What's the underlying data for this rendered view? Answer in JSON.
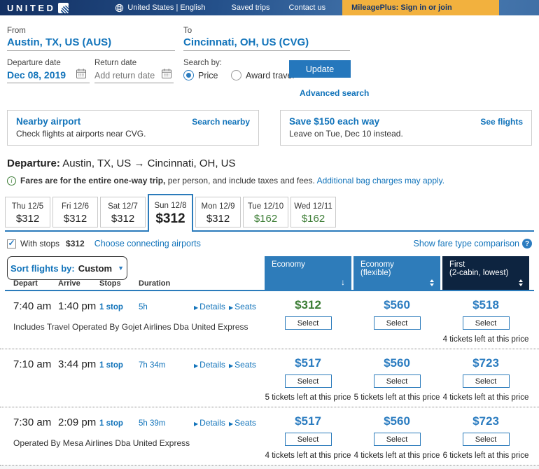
{
  "navbar": {
    "logo_text": "UNITED",
    "region": "United States | English",
    "saved_trips": "Saved trips",
    "contact_us": "Contact us",
    "mileageplus": "MileagePlus: Sign in or join"
  },
  "search_form": {
    "from_label": "From",
    "from_value": "Austin, TX, US (AUS)",
    "to_label": "To",
    "to_value": "Cincinnati, OH, US (CVG)",
    "departure_date_label": "Departure date",
    "departure_date_value": "Dec 08, 2019",
    "return_date_label": "Return date",
    "return_date_placeholder": "Add return date",
    "search_by_label": "Search by:",
    "radio_price": "Price",
    "radio_award": "Award travel",
    "update_button": "Update",
    "advanced_search": "Advanced search"
  },
  "promos": [
    {
      "title": "Nearby airport",
      "body": "Check flights at airports near CVG.",
      "link": "Search nearby"
    },
    {
      "title": "Save $150 each way",
      "body": "Leave on Tue, Dec 10 instead.",
      "link": "See flights"
    }
  ],
  "departure": {
    "label": "Departure:",
    "route": "Austin, TX, US → Cincinnati, OH, US",
    "note_bold": "Fares are for the entire one-way trip,",
    "note_rest": " per person, and include taxes and fees.",
    "note_link": "Additional bag charges may apply."
  },
  "date_tabs": [
    {
      "day": "Thu 12/5",
      "price": "$312",
      "selected": false,
      "green": false
    },
    {
      "day": "Fri 12/6",
      "price": "$312",
      "selected": false,
      "green": false
    },
    {
      "day": "Sat 12/7",
      "price": "$312",
      "selected": false,
      "green": false
    },
    {
      "day": "Sun 12/8",
      "price": "$312",
      "selected": true,
      "green": false
    },
    {
      "day": "Mon 12/9",
      "price": "$312",
      "selected": false,
      "green": false
    },
    {
      "day": "Tue 12/10",
      "price": "$162",
      "selected": false,
      "green": true
    },
    {
      "day": "Wed 12/11",
      "price": "$162",
      "selected": false,
      "green": true
    }
  ],
  "filters": {
    "with_stops_label": "With stops",
    "with_stops_price": "$312",
    "connecting_link": "Choose connecting airports",
    "fare_comparison_link": "Show fare type comparison"
  },
  "results": {
    "sort_label": "Sort flights by:",
    "sort_value": "Custom",
    "columns": [
      "Depart",
      "Arrive",
      "Stops",
      "Duration"
    ],
    "fare_columns": [
      {
        "title": "Economy",
        "subtitle": "",
        "sort": "down",
        "dark": false
      },
      {
        "title": "Economy",
        "subtitle": "(flexible)",
        "sort": "both",
        "dark": false
      },
      {
        "title": "First",
        "subtitle": "(2-cabin, lowest)",
        "sort": "both",
        "dark": true
      }
    ],
    "flights": [
      {
        "depart": "7:40 am",
        "arrive": "1:40 pm",
        "stops": "1 stop",
        "duration": "5h",
        "details_label": "Details",
        "seats_label": "Seats",
        "note": "Includes Travel Operated By Gojet Airlines Dba United Express",
        "fares": [
          {
            "price": "$312",
            "green": true,
            "select_label": "Select",
            "tickets": ""
          },
          {
            "price": "$560",
            "green": false,
            "select_label": "Select",
            "tickets": ""
          },
          {
            "price": "$518",
            "green": false,
            "select_label": "Select",
            "tickets": "4 tickets left at this price"
          }
        ]
      },
      {
        "depart": "7:10 am",
        "arrive": "3:44 pm",
        "stops": "1 stop",
        "duration": "7h 34m",
        "details_label": "Details",
        "seats_label": "Seats",
        "note": "",
        "fares": [
          {
            "price": "$517",
            "green": false,
            "select_label": "Select",
            "tickets": "5 tickets left at this price"
          },
          {
            "price": "$560",
            "green": false,
            "select_label": "Select",
            "tickets": "5 tickets left at this price"
          },
          {
            "price": "$723",
            "green": false,
            "select_label": "Select",
            "tickets": "4 tickets left at this price"
          }
        ]
      },
      {
        "depart": "7:30 am",
        "arrive": "2:09 pm",
        "stops": "1 stop",
        "duration": "5h 39m",
        "details_label": "Details",
        "seats_label": "Seats",
        "note": "Operated By Mesa Airlines Dba United Express",
        "fares": [
          {
            "price": "$517",
            "green": false,
            "select_label": "Select",
            "tickets": "4 tickets left at this price"
          },
          {
            "price": "$560",
            "green": false,
            "select_label": "Select",
            "tickets": "4 tickets left at this price"
          },
          {
            "price": "$723",
            "green": false,
            "select_label": "Select",
            "tickets": "6 tickets left at this price"
          }
        ]
      }
    ]
  }
}
